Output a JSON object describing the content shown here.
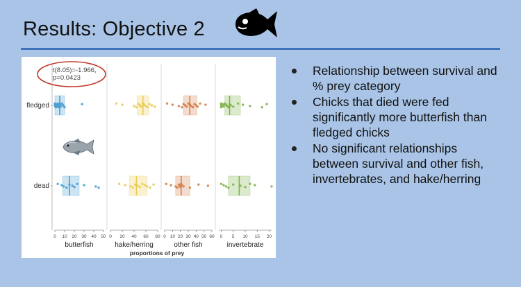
{
  "slide": {
    "title": "Results: Objective 2",
    "icon": "fish-silhouette-icon",
    "background_color": "#a9c4e6",
    "rule_color": "#3f73b9"
  },
  "bullets": [
    "Relationship between survival and % prey category",
    "Chicks that died were fed significantly more butterfish than fledged chicks",
    "No significant relationships between survival and other fish, invertebrates, and hake/herring"
  ],
  "chart_data": {
    "type": "box-strip",
    "xlabel": "proportions of prey",
    "rows": [
      "fledged",
      "dead"
    ],
    "annotation": {
      "line1": "t(8.05)=-1.966,",
      "line2": "p=0.0423",
      "circle_color": "#c0392b"
    },
    "image": "butterfish-icon",
    "panels": [
      {
        "name": "butterfish",
        "color": "#4a9fd0",
        "xlim": [
          0,
          50
        ],
        "ticks": [
          0,
          10,
          20,
          30,
          40,
          50
        ],
        "data": {
          "fledged": {
            "q1": 0,
            "median": 5,
            "q3": 10,
            "points": [
              0,
              0,
              0,
              1,
              1,
              2,
              2,
              3,
              3,
              4,
              4,
              5,
              5,
              6,
              7,
              8,
              9,
              10,
              28
            ]
          },
          "dead": {
            "q1": 8,
            "median": 15,
            "q3": 25,
            "points": [
              3,
              7,
              9,
              12,
              15,
              18,
              20,
              23,
              30,
              42,
              45
            ]
          }
        }
      },
      {
        "name": "hake/herring",
        "color": "#e8cb55",
        "xlim": [
          0,
          80
        ],
        "ticks": [
          0,
          20,
          40,
          60,
          80
        ],
        "data": {
          "fledged": {
            "q1": 45,
            "median": 55,
            "q3": 65,
            "points": [
              10,
              20,
              40,
              44,
              47,
              50,
              52,
              55,
              57,
              60,
              63,
              66,
              70,
              75
            ]
          },
          "dead": {
            "q1": 32,
            "median": 44,
            "q3": 62,
            "points": [
              15,
              25,
              34,
              38,
              42,
              46,
              50,
              54,
              58,
              62,
              67,
              73
            ]
          }
        }
      },
      {
        "name": "other fish",
        "color": "#d3804a",
        "xlim": [
          0,
          60
        ],
        "ticks": [
          0,
          10,
          20,
          30,
          40,
          50,
          60
        ],
        "data": {
          "fledged": {
            "q1": 24,
            "median": 32,
            "q3": 41,
            "points": [
              3,
              10,
              18,
              22,
              24,
              26,
              28,
              30,
              32,
              34,
              36,
              38,
              40,
              42,
              45,
              52
            ]
          },
          "dead": {
            "q1": 14,
            "median": 21,
            "q3": 32,
            "points": [
              2,
              8,
              14,
              16,
              18,
              19,
              20,
              21,
              22,
              24,
              32,
              43,
              55
            ]
          }
        }
      },
      {
        "name": "invertebrate",
        "color": "#7fb24a",
        "xlim": [
          -1,
          21
        ],
        "ticks": [
          0,
          5,
          10,
          15,
          20
        ],
        "data": {
          "fledged": {
            "q1": 1.5,
            "median": 3.5,
            "q3": 8,
            "points": [
              0,
              0,
              0,
              0,
              0.5,
              1,
              1,
              1.5,
              2,
              2.5,
              3,
              3.5,
              4,
              5,
              7,
              9,
              12,
              17,
              19
            ]
          },
          "dead": {
            "q1": 3,
            "median": 7.5,
            "q3": 12,
            "points": [
              0,
              1,
              2,
              3,
              5,
              8,
              10,
              12,
              14,
              21
            ]
          }
        }
      }
    ]
  }
}
